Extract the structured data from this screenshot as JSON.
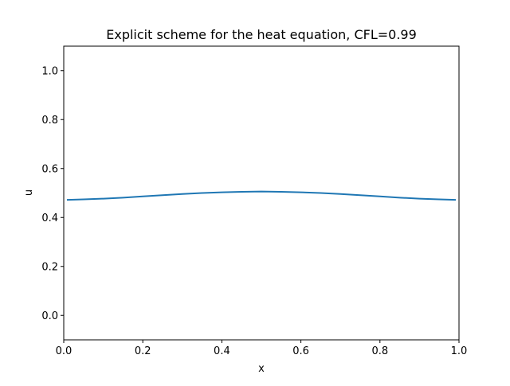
{
  "chart_data": {
    "type": "line",
    "title": "Explicit scheme for the heat equation, CFL=0.99",
    "xlabel": "x",
    "ylabel": "u",
    "xlim": [
      0.0,
      1.0
    ],
    "ylim": [
      -0.1,
      1.1
    ],
    "xticks": [
      0.0,
      0.2,
      0.4,
      0.6,
      0.8,
      1.0
    ],
    "xtick_labels": [
      "0.0",
      "0.2",
      "0.4",
      "0.6",
      "0.8",
      "1.0"
    ],
    "yticks": [
      0.0,
      0.2,
      0.4,
      0.6,
      0.8,
      1.0
    ],
    "ytick_labels": [
      "0.0",
      "0.2",
      "0.4",
      "0.6",
      "0.8",
      "1.0"
    ],
    "grid": false,
    "series": [
      {
        "color": "#1f77b4",
        "x": [
          0.01,
          0.05,
          0.1,
          0.15,
          0.2,
          0.25,
          0.3,
          0.35,
          0.4,
          0.45,
          0.5,
          0.55,
          0.6,
          0.65,
          0.7,
          0.75,
          0.8,
          0.85,
          0.9,
          0.95,
          0.99
        ],
        "y": [
          0.472,
          0.474,
          0.477,
          0.481,
          0.486,
          0.491,
          0.496,
          0.5,
          0.503,
          0.505,
          0.506,
          0.505,
          0.503,
          0.5,
          0.496,
          0.491,
          0.486,
          0.481,
          0.477,
          0.474,
          0.472
        ]
      }
    ]
  }
}
